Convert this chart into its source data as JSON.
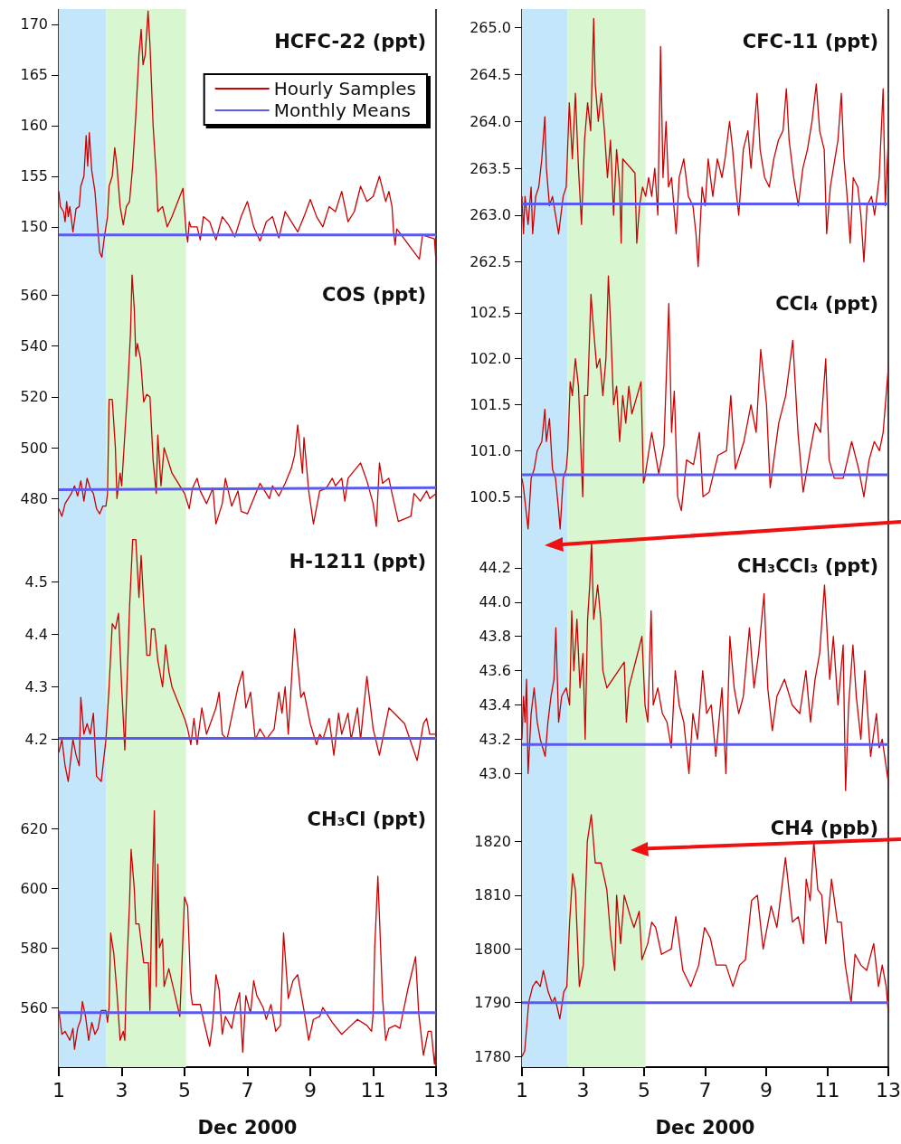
{
  "chart_data": [
    {
      "type": "line",
      "title": "HCFC-22 (ppt)",
      "legend": "top right",
      "tick_labels": "y",
      "xlim": [
        1,
        13
      ],
      "xticks": [
        1,
        3,
        5,
        7,
        9,
        11,
        13
      ],
      "ylim": [
        146.5,
        171.5
      ],
      "yticks": [
        150,
        155,
        160,
        165,
        170
      ],
      "bands": [
        {
          "axis": "x",
          "from": 1,
          "to": 2.5,
          "color": "#c4e6fa"
        },
        {
          "axis": "x",
          "from": 2.5,
          "to": 5.05,
          "color": "#d8f6d0"
        }
      ],
      "series": [
        {
          "name": "Hourly Samples",
          "color": "#cc0000",
          "x": [
            1.0,
            1.05,
            1.15,
            1.2,
            1.25,
            1.3,
            1.35,
            1.45,
            1.55,
            1.65,
            1.7,
            1.8,
            1.87,
            1.92,
            1.97,
            2.05,
            2.15,
            2.3,
            2.37,
            2.45,
            2.55,
            2.6,
            2.7,
            2.78,
            2.85,
            2.95,
            3.05,
            3.15,
            3.25,
            3.35,
            3.45,
            3.55,
            3.62,
            3.68,
            3.75,
            3.84,
            3.9,
            4.0,
            4.1,
            4.15,
            4.3,
            4.45,
            4.6,
            4.95,
            5.05,
            5.1,
            5.15,
            5.2,
            5.4,
            5.5,
            5.6,
            5.8,
            6.0,
            6.2,
            6.4,
            6.6,
            6.8,
            7.0,
            7.2,
            7.4,
            7.6,
            7.8,
            8.0,
            8.2,
            8.4,
            8.6,
            8.8,
            9.0,
            9.2,
            9.4,
            9.6,
            9.8,
            10.0,
            10.2,
            10.4,
            10.6,
            10.8,
            11.0,
            11.2,
            11.4,
            11.5,
            11.6,
            11.65,
            11.7,
            11.75,
            12.47,
            12.57,
            12.95,
            13.0
          ],
          "values": [
            153.5,
            152,
            151.5,
            150.5,
            152.5,
            151,
            152,
            149.5,
            151.8,
            152,
            154,
            155,
            159,
            156,
            159.3,
            155.5,
            153.5,
            147.5,
            147,
            149,
            151,
            154,
            155,
            157.8,
            156,
            152,
            150.2,
            152,
            152.5,
            156,
            161,
            167,
            169.5,
            166,
            167,
            171.3,
            168,
            160,
            155,
            151.5,
            152,
            150,
            151,
            153.8,
            149.5,
            148.5,
            150.5,
            150,
            150,
            148.7,
            151,
            150.5,
            148.7,
            151,
            150.2,
            149,
            151,
            152.5,
            150,
            148.6,
            150.5,
            151,
            148.9,
            151.5,
            150.5,
            149.5,
            151,
            152.7,
            151,
            150,
            152,
            151.5,
            153.5,
            150.5,
            151.5,
            154,
            152.5,
            153,
            155,
            152.5,
            153.5,
            152,
            149.5,
            148.2,
            149.8,
            146.8,
            149.2,
            148.8,
            146.5
          ]
        },
        {
          "name": "Monthly Means",
          "color": "#5a5af0",
          "x": [
            1,
            13
          ],
          "values": [
            149.2,
            149.2
          ]
        }
      ]
    },
    {
      "type": "line",
      "title": "COS (ppt)",
      "tick_labels": "y",
      "xlim": [
        1,
        13
      ],
      "xticks": [
        1,
        3,
        5,
        7,
        9,
        11,
        13
      ],
      "ylim": [
        468,
        573
      ],
      "yticks": [
        480,
        500,
        520,
        540,
        560
      ],
      "bands": [
        {
          "axis": "x",
          "from": 1,
          "to": 2.5,
          "color": "#c4e6fa"
        },
        {
          "axis": "x",
          "from": 2.5,
          "to": 5.05,
          "color": "#d8f6d0"
        }
      ],
      "series": [
        {
          "color": "#cc0000",
          "x": [
            1.0,
            1.1,
            1.2,
            1.3,
            1.4,
            1.5,
            1.6,
            1.7,
            1.8,
            1.9,
            2.0,
            2.1,
            2.2,
            2.3,
            2.4,
            2.5,
            2.55,
            2.6,
            2.7,
            2.8,
            2.85,
            2.95,
            3.0,
            3.1,
            3.2,
            3.28,
            3.33,
            3.4,
            3.45,
            3.5,
            3.6,
            3.7,
            3.8,
            3.9,
            4.0,
            4.1,
            4.15,
            4.25,
            4.35,
            4.45,
            4.6,
            5.0,
            5.15,
            5.25,
            5.4,
            5.5,
            5.7,
            5.9,
            6.0,
            6.2,
            6.3,
            6.5,
            6.7,
            6.8,
            7.0,
            7.3,
            7.4,
            7.7,
            7.8,
            8.0,
            8.2,
            8.4,
            8.5,
            8.6,
            8.75,
            8.8,
            8.95,
            9.1,
            9.3,
            9.5,
            9.7,
            9.8,
            10.0,
            10.1,
            10.2,
            10.4,
            10.6,
            10.8,
            11.0,
            11.1,
            11.2,
            11.3,
            11.5,
            11.6,
            11.8,
            12.2,
            12.3,
            12.5,
            12.7,
            12.8,
            13.0
          ],
          "values": [
            476,
            473,
            478,
            480,
            482,
            485,
            481,
            487,
            479,
            488,
            484,
            482,
            476,
            474,
            477,
            477,
            482,
            519,
            519,
            500,
            480,
            490,
            485,
            505,
            525,
            545,
            568,
            555,
            536,
            541,
            535,
            518,
            521,
            520,
            495,
            482,
            505,
            485,
            500,
            496,
            490,
            482,
            476,
            484,
            488,
            483,
            478,
            484,
            470,
            478,
            488,
            477,
            483,
            475,
            474,
            483,
            486,
            480,
            485,
            481,
            486,
            492,
            497,
            509,
            490,
            504,
            483,
            470,
            483,
            484,
            488,
            485,
            488,
            479,
            488,
            491,
            494,
            487,
            478,
            469,
            494,
            486,
            488,
            482,
            471,
            473,
            482,
            479,
            483,
            480,
            482
          ]
        },
        {
          "color": "#5a5af0",
          "x": [
            1,
            13
          ],
          "values": [
            483.5,
            484.3
          ]
        }
      ]
    },
    {
      "type": "line",
      "title": "H-1211 (ppt)",
      "tick_labels": "y",
      "xlim": [
        1,
        13
      ],
      "xticks": [
        1,
        3,
        5,
        7,
        9,
        11,
        13
      ],
      "ylim": [
        4.11,
        4.6
      ],
      "yticks": [
        4.2,
        4.3,
        4.4,
        4.5
      ],
      "bands": [
        {
          "axis": "x",
          "from": 1,
          "to": 2.5,
          "color": "#c4e6fa"
        },
        {
          "axis": "x",
          "from": 2.5,
          "to": 5.05,
          "color": "#d8f6d0"
        }
      ],
      "series": [
        {
          "color": "#cc0000",
          "x": [
            1.0,
            1.1,
            1.2,
            1.3,
            1.45,
            1.55,
            1.65,
            1.7,
            1.8,
            1.9,
            2.0,
            2.1,
            2.2,
            2.35,
            2.5,
            2.6,
            2.7,
            2.8,
            2.9,
            3.0,
            3.1,
            3.25,
            3.35,
            3.45,
            3.55,
            3.62,
            3.7,
            3.8,
            3.9,
            3.95,
            4.05,
            4.15,
            4.3,
            4.4,
            4.5,
            4.6,
            5.0,
            5.1,
            5.2,
            5.3,
            5.4,
            5.55,
            5.7,
            6.0,
            6.1,
            6.2,
            6.35,
            6.7,
            6.85,
            6.95,
            7.1,
            7.25,
            7.4,
            7.6,
            7.85,
            8.0,
            8.1,
            8.2,
            8.3,
            8.5,
            8.7,
            8.8,
            9.0,
            9.2,
            9.3,
            9.4,
            9.6,
            9.75,
            9.9,
            10.0,
            10.2,
            10.3,
            10.5,
            10.6,
            10.8,
            11.0,
            11.2,
            11.5,
            12.0,
            12.4,
            12.6,
            12.7,
            12.8,
            13.0
          ],
          "values": [
            4.175,
            4.2,
            4.15,
            4.12,
            4.2,
            4.17,
            4.15,
            4.28,
            4.21,
            4.23,
            4.21,
            4.25,
            4.13,
            4.12,
            4.2,
            4.3,
            4.42,
            4.41,
            4.44,
            4.3,
            4.18,
            4.45,
            4.58,
            4.58,
            4.47,
            4.55,
            4.46,
            4.36,
            4.36,
            4.41,
            4.41,
            4.35,
            4.3,
            4.38,
            4.33,
            4.3,
            4.24,
            4.22,
            4.19,
            4.24,
            4.19,
            4.26,
            4.21,
            4.26,
            4.29,
            4.21,
            4.2,
            4.3,
            4.33,
            4.26,
            4.29,
            4.2,
            4.22,
            4.2,
            4.22,
            4.29,
            4.25,
            4.3,
            4.21,
            4.41,
            4.28,
            4.29,
            4.23,
            4.19,
            4.21,
            4.2,
            4.24,
            4.17,
            4.25,
            4.21,
            4.25,
            4.2,
            4.26,
            4.2,
            4.32,
            4.22,
            4.17,
            4.26,
            4.23,
            4.16,
            4.23,
            4.24,
            4.21,
            4.21
          ]
        },
        {
          "color": "#5a5af0",
          "x": [
            1,
            13
          ],
          "values": [
            4.202,
            4.202
          ]
        }
      ]
    },
    {
      "type": "line",
      "title": "CH₃Cl (ppt)",
      "xlabel": "Dec 2000",
      "xlim": [
        1,
        13
      ],
      "xticks": [
        1,
        3,
        5,
        7,
        9,
        11,
        13
      ],
      "ylim": [
        540,
        634
      ],
      "yticks": [
        560,
        580,
        600,
        620
      ],
      "bands": [
        {
          "axis": "x",
          "from": 1,
          "to": 2.5,
          "color": "#c4e6fa"
        },
        {
          "axis": "x",
          "from": 2.5,
          "to": 5.05,
          "color": "#d8f6d0"
        }
      ],
      "series": [
        {
          "color": "#cc0000",
          "x": [
            1.0,
            1.1,
            1.2,
            1.35,
            1.45,
            1.5,
            1.6,
            1.7,
            1.75,
            1.85,
            1.95,
            2.05,
            2.15,
            2.25,
            2.35,
            2.5,
            2.55,
            2.6,
            2.65,
            2.75,
            2.85,
            2.95,
            3.05,
            3.1,
            3.15,
            3.25,
            3.3,
            3.4,
            3.45,
            3.55,
            3.7,
            3.85,
            3.9,
            3.95,
            4.04,
            4.1,
            4.15,
            4.2,
            4.3,
            4.35,
            4.5,
            4.7,
            4.85,
            5.0,
            5.1,
            5.2,
            5.25,
            5.5,
            5.6,
            5.8,
            5.9,
            6.0,
            6.1,
            6.2,
            6.3,
            6.5,
            6.6,
            6.75,
            6.85,
            6.95,
            7.1,
            7.2,
            7.3,
            7.5,
            7.6,
            7.75,
            7.9,
            8.05,
            8.15,
            8.3,
            8.45,
            8.6,
            8.8,
            8.95,
            9.1,
            9.3,
            9.4,
            9.7,
            10.0,
            10.2,
            10.5,
            10.8,
            10.95,
            11.0,
            11.05,
            11.15,
            11.3,
            11.4,
            11.5,
            11.7,
            11.85,
            12.1,
            12.35,
            12.45,
            12.6,
            12.75,
            12.85,
            12.95,
            13.0
          ],
          "values": [
            559,
            551,
            552,
            549,
            553,
            546,
            553,
            556,
            562,
            557,
            549,
            555,
            551,
            553,
            559,
            559,
            555,
            560,
            585,
            578,
            565,
            549,
            552,
            549,
            570,
            595,
            613,
            600,
            588,
            588,
            575,
            575,
            559,
            590,
            626,
            567,
            608,
            580,
            583,
            567,
            573,
            564,
            557,
            597,
            594,
            565,
            561,
            561,
            556,
            547,
            555,
            571,
            566,
            551,
            557,
            553,
            559,
            565,
            545,
            564,
            558,
            569,
            564,
            560,
            556,
            561,
            552,
            554,
            585,
            563,
            569,
            571,
            559,
            549,
            556,
            557,
            560,
            555,
            551,
            553,
            556,
            554,
            552,
            558,
            580,
            604,
            563,
            549,
            553,
            554,
            553,
            566,
            577,
            558,
            544,
            552,
            552,
            541,
            547
          ]
        },
        {
          "color": "#5a5af0",
          "x": [
            1,
            13
          ],
          "values": [
            558.3,
            558.3
          ]
        }
      ]
    },
    {
      "type": "line",
      "title": "CFC-11 (ppt)",
      "tick_labels": "y",
      "xlim": [
        1,
        13
      ],
      "xticks": [
        1,
        3,
        5,
        7,
        9,
        11,
        13
      ],
      "ylim": [
        262.4,
        265.2
      ],
      "yticks": [
        {
          "value": 262.5,
          "label": "262.5"
        },
        {
          "value": 263,
          "label": "263.0"
        },
        {
          "value": 263.5,
          "label": "263.5"
        },
        {
          "value": 264,
          "label": "264.0"
        },
        {
          "value": 264.5,
          "label": "264.5"
        },
        {
          "value": 265,
          "label": "265.0"
        }
      ],
      "bands": [
        {
          "axis": "x",
          "from": 1,
          "to": 2.5,
          "color": "#c4e6fa"
        },
        {
          "axis": "x",
          "from": 2.5,
          "to": 5.05,
          "color": "#d8f6d0"
        }
      ],
      "series": [
        {
          "color": "#cc0000",
          "x": [
            1.0,
            1.05,
            1.1,
            1.2,
            1.3,
            1.35,
            1.45,
            1.55,
            1.65,
            1.75,
            1.8,
            1.9,
            2.0,
            2.1,
            2.2,
            2.35,
            2.45,
            2.55,
            2.65,
            2.75,
            2.85,
            2.95,
            3.05,
            3.15,
            3.25,
            3.35,
            3.4,
            3.5,
            3.6,
            3.7,
            3.8,
            3.9,
            4.0,
            4.1,
            4.2,
            4.25,
            4.3,
            4.7,
            4.76,
            4.85,
            4.95,
            5.05,
            5.15,
            5.25,
            5.35,
            5.45,
            5.54,
            5.62,
            5.72,
            5.8,
            5.9,
            6.0,
            6.05,
            6.15,
            6.3,
            6.45,
            6.6,
            6.7,
            6.77,
            6.9,
            7.0,
            7.1,
            7.25,
            7.4,
            7.55,
            7.65,
            7.8,
            7.9,
            8.0,
            8.1,
            8.25,
            8.4,
            8.5,
            8.6,
            8.7,
            8.8,
            8.95,
            9.1,
            9.25,
            9.4,
            9.55,
            9.66,
            9.75,
            9.9,
            10.05,
            10.2,
            10.35,
            10.5,
            10.64,
            10.75,
            10.9,
            10.98,
            11.1,
            11.25,
            11.35,
            11.46,
            11.55,
            11.65,
            11.75,
            11.85,
            12.0,
            12.1,
            12.2,
            12.3,
            12.45,
            12.55,
            12.7,
            12.83,
            12.9,
            13.0
          ],
          "values": [
            263.2,
            262.8,
            263.2,
            262.9,
            263.3,
            262.8,
            263.2,
            263.3,
            263.6,
            264.05,
            263.5,
            263.1,
            263.2,
            263.0,
            262.8,
            263.2,
            263.3,
            264.2,
            263.6,
            264.3,
            263.5,
            262.9,
            263.8,
            264.2,
            263.9,
            265.1,
            264.4,
            264.0,
            264.3,
            263.9,
            263.4,
            263.8,
            263.0,
            263.7,
            263.3,
            262.7,
            263.6,
            263.45,
            262.7,
            263.1,
            263.3,
            263.2,
            263.4,
            263.2,
            263.5,
            263.0,
            264.8,
            263.4,
            264.0,
            263.3,
            263.4,
            263.0,
            262.8,
            263.4,
            263.6,
            263.2,
            263.1,
            262.8,
            262.45,
            263.3,
            263.1,
            263.6,
            263.2,
            263.6,
            263.4,
            263.6,
            264.0,
            263.7,
            263.3,
            263.0,
            263.7,
            263.9,
            263.5,
            263.9,
            264.3,
            263.7,
            263.4,
            263.3,
            263.6,
            263.8,
            263.9,
            264.35,
            263.8,
            263.4,
            263.1,
            263.5,
            263.7,
            264.0,
            264.4,
            263.9,
            263.7,
            262.8,
            263.3,
            263.6,
            263.8,
            264.3,
            263.6,
            263.2,
            262.7,
            263.4,
            263.3,
            263.0,
            262.5,
            263.1,
            263.2,
            263.0,
            263.4,
            264.35,
            263.1,
            263.8
          ]
        },
        {
          "color": "#5a5af0",
          "x": [
            1,
            13
          ],
          "values": [
            263.12,
            263.12
          ]
        }
      ]
    },
    {
      "type": "line",
      "title": "CCl₄ (ppt)",
      "tick_labels": "y",
      "xlim": [
        1,
        13
      ],
      "xticks": [
        1,
        3,
        5,
        7,
        9,
        11,
        13
      ],
      "ylim": [
        100.1,
        102.95
      ],
      "yticks": [
        100.5,
        {
          "value": 101,
          "label": "101.0"
        },
        101.5,
        {
          "value": 102,
          "label": "102.0"
        },
        102.5
      ],
      "bands": [
        {
          "axis": "x",
          "from": 1,
          "to": 2.5,
          "color": "#c4e6fa"
        },
        {
          "axis": "x",
          "from": 2.5,
          "to": 5.05,
          "color": "#d8f6d0"
        }
      ],
      "series": [
        {
          "color": "#cc0000",
          "x": [
            1.0,
            1.05,
            1.2,
            1.3,
            1.4,
            1.5,
            1.65,
            1.75,
            1.8,
            1.9,
            2.0,
            2.1,
            2.2,
            2.25,
            2.35,
            2.45,
            2.5,
            2.58,
            2.65,
            2.75,
            2.85,
            2.99,
            3.05,
            3.15,
            3.26,
            3.35,
            3.45,
            3.55,
            3.65,
            3.75,
            3.83,
            3.9,
            4.0,
            4.1,
            4.2,
            4.3,
            4.4,
            4.5,
            4.6,
            4.9,
            4.98,
            5.02,
            5.25,
            5.48,
            5.65,
            5.81,
            5.9,
            5.99,
            6.1,
            6.22,
            6.39,
            6.62,
            6.81,
            6.93,
            7.13,
            7.42,
            7.7,
            7.84,
            7.99,
            8.27,
            8.5,
            8.67,
            8.82,
            9.01,
            9.13,
            9.41,
            9.64,
            9.87,
            10.04,
            10.21,
            10.44,
            10.61,
            10.78,
            10.95,
            11.06,
            11.23,
            11.52,
            11.8,
            12.03,
            12.2,
            12.37,
            12.54,
            12.71,
            12.83,
            13.0
          ],
          "values": [
            100.7,
            100.6,
            100.15,
            100.7,
            100.8,
            101.0,
            101.1,
            101.45,
            101.1,
            101.35,
            100.8,
            100.7,
            100.35,
            100.15,
            100.7,
            100.8,
            101.0,
            101.75,
            101.6,
            102.0,
            101.7,
            100.5,
            101.6,
            101.6,
            102.7,
            102.3,
            101.9,
            102.0,
            101.6,
            102.0,
            102.9,
            102.4,
            101.5,
            101.7,
            101.1,
            101.6,
            101.3,
            101.7,
            101.4,
            101.75,
            100.65,
            100.7,
            101.2,
            100.75,
            101.05,
            102.6,
            101.2,
            101.65,
            100.5,
            100.35,
            100.9,
            100.85,
            101.2,
            100.5,
            100.55,
            100.95,
            101.0,
            101.6,
            100.8,
            101.1,
            101.5,
            101.2,
            102.1,
            101.5,
            100.6,
            101.3,
            101.6,
            102.2,
            101.2,
            100.55,
            101.0,
            101.3,
            101.2,
            102.0,
            100.9,
            100.7,
            100.7,
            101.1,
            100.8,
            100.5,
            100.9,
            101.1,
            101.0,
            101.2,
            101.9
          ]
        },
        {
          "color": "#5a5af0",
          "x": [
            1,
            13
          ],
          "values": [
            100.74,
            100.74
          ]
        }
      ]
    },
    {
      "type": "line",
      "title": "CH₃CCl₃ (ppt)",
      "tick_labels": "y",
      "xlim": [
        1,
        13
      ],
      "xticks": [
        1,
        3,
        5,
        7,
        9,
        11,
        13
      ],
      "ylim": [
        42.87,
        44.4
      ],
      "yticks": [
        {
          "value": 43,
          "label": "43.0"
        },
        43.2,
        43.4,
        43.6,
        43.8,
        {
          "value": 44,
          "label": "44.0"
        },
        44.2
      ],
      "bands": [
        {
          "axis": "x",
          "from": 1,
          "to": 2.5,
          "color": "#c4e6fa"
        },
        {
          "axis": "x",
          "from": 2.5,
          "to": 5.05,
          "color": "#d8f6d0"
        }
      ],
      "series": [
        {
          "color": "#cc0000",
          "x": [
            1.0,
            1.05,
            1.1,
            1.15,
            1.2,
            1.3,
            1.4,
            1.5,
            1.6,
            1.76,
            1.85,
            1.95,
            2.05,
            2.11,
            2.2,
            2.3,
            2.45,
            2.56,
            2.63,
            2.7,
            2.8,
            2.9,
            3.0,
            3.07,
            3.15,
            3.22,
            3.28,
            3.35,
            3.48,
            3.58,
            3.65,
            3.78,
            4.35,
            4.42,
            4.5,
            4.93,
            5.03,
            5.12,
            5.23,
            5.3,
            5.45,
            5.6,
            5.75,
            5.89,
            6.02,
            6.15,
            6.3,
            6.47,
            6.6,
            6.75,
            6.92,
            7.05,
            7.2,
            7.35,
            7.55,
            7.68,
            7.81,
            7.95,
            8.1,
            8.25,
            8.45,
            8.6,
            8.75,
            8.93,
            9.05,
            9.2,
            9.35,
            9.6,
            9.85,
            10.1,
            10.3,
            10.45,
            10.6,
            10.75,
            10.91,
            11.08,
            11.2,
            11.35,
            11.52,
            11.6,
            11.7,
            11.84,
            11.95,
            12.1,
            12.23,
            12.42,
            12.61,
            12.7,
            12.8,
            13.0
          ],
          "values": [
            43.2,
            43.45,
            43.3,
            43.55,
            43.0,
            43.35,
            43.5,
            43.3,
            43.2,
            43.1,
            43.3,
            43.45,
            43.55,
            43.85,
            43.3,
            43.45,
            43.5,
            43.4,
            43.95,
            43.6,
            43.9,
            43.5,
            43.7,
            43.2,
            43.9,
            44.1,
            44.35,
            43.9,
            44.1,
            43.9,
            43.6,
            43.5,
            43.65,
            43.3,
            43.5,
            43.8,
            43.4,
            43.3,
            43.95,
            43.4,
            43.5,
            43.35,
            43.3,
            43.15,
            43.6,
            43.4,
            43.3,
            43.0,
            43.35,
            43.2,
            43.6,
            43.35,
            43.4,
            43.1,
            43.5,
            43.0,
            43.8,
            43.5,
            43.35,
            43.45,
            43.85,
            43.5,
            43.7,
            44.05,
            43.5,
            43.25,
            43.45,
            43.55,
            43.4,
            43.35,
            43.6,
            43.3,
            43.55,
            43.7,
            44.1,
            43.55,
            43.8,
            43.4,
            43.75,
            42.9,
            43.4,
            43.75,
            43.45,
            43.2,
            43.6,
            43.1,
            43.35,
            43.15,
            43.2,
            42.95
          ]
        },
        {
          "color": "#5a5af0",
          "x": [
            1,
            13
          ],
          "values": [
            43.17,
            43.17
          ]
        }
      ]
    },
    {
      "type": "line",
      "title": "CH4 (ppb)",
      "xlabel": "Dec 2000",
      "xlim": [
        1,
        13
      ],
      "xticks": [
        1,
        3,
        5,
        7,
        9,
        11,
        13
      ],
      "ylim": [
        1778,
        1828.5
      ],
      "yticks": [
        1780,
        1790,
        1800,
        1810,
        1820
      ],
      "bands": [
        {
          "axis": "x",
          "from": 1,
          "to": 2.5,
          "color": "#c4e6fa"
        },
        {
          "axis": "x",
          "from": 2.5,
          "to": 5.05,
          "color": "#d8f6d0"
        }
      ],
      "series": [
        {
          "color": "#cc0000",
          "x": [
            1.0,
            1.09,
            1.22,
            1.35,
            1.47,
            1.6,
            1.7,
            1.86,
            1.99,
            2.08,
            2.24,
            2.37,
            2.47,
            2.56,
            2.66,
            2.75,
            2.88,
            3.01,
            3.14,
            3.27,
            3.4,
            3.59,
            3.78,
            3.91,
            4.04,
            4.1,
            4.23,
            4.35,
            4.55,
            4.67,
            4.84,
            4.93,
            5.12,
            5.25,
            5.38,
            5.57,
            5.89,
            6.04,
            6.27,
            6.53,
            6.79,
            6.98,
            7.17,
            7.36,
            7.68,
            7.91,
            8.13,
            8.32,
            8.52,
            8.71,
            8.9,
            9.16,
            9.35,
            9.63,
            9.86,
            10.05,
            10.22,
            10.31,
            10.44,
            10.56,
            10.69,
            10.82,
            10.95,
            11.14,
            11.33,
            11.46,
            11.59,
            11.78,
            11.91,
            12.1,
            12.29,
            12.52,
            12.68,
            12.8,
            12.93,
            13.0
          ],
          "values": [
            1780,
            1781,
            1790,
            1793,
            1794,
            1793,
            1796,
            1792,
            1790,
            1791,
            1787,
            1792,
            1793,
            1805,
            1814,
            1811,
            1793,
            1797,
            1820,
            1825,
            1816,
            1816,
            1811,
            1802,
            1796,
            1810,
            1801,
            1810,
            1806,
            1804,
            1807,
            1798,
            1801,
            1805,
            1804,
            1799,
            1800,
            1806,
            1796,
            1793,
            1797,
            1804,
            1802,
            1797,
            1797,
            1793,
            1797,
            1798,
            1809,
            1810,
            1800,
            1808,
            1804,
            1817,
            1805,
            1806,
            1801,
            1813,
            1809,
            1820,
            1811,
            1810,
            1801,
            1813,
            1805,
            1805,
            1797,
            1790,
            1799,
            1797,
            1796,
            1801,
            1793,
            1797,
            1793,
            1788
          ]
        },
        {
          "color": "#5a5af0",
          "x": [
            1,
            13
          ],
          "values": [
            1790,
            1790
          ]
        }
      ]
    }
  ]
}
